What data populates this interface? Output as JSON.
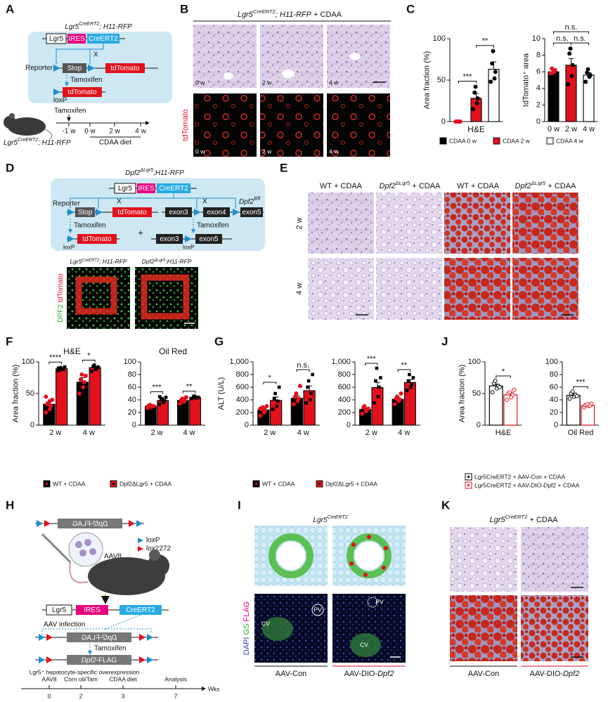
{
  "panel_labels": [
    "A",
    "B",
    "C",
    "D",
    "E",
    "F",
    "G",
    "H",
    "I",
    "J",
    "K"
  ],
  "A": {
    "title": [
      {
        "t": "Lgr5"
      },
      {
        "sup": "CreERT2"
      },
      {
        "t": "; H11-RFP"
      }
    ],
    "construct": [
      "Lgr5",
      "IRES",
      "CreERT2"
    ],
    "x_mark": "X",
    "reporter": "Reporter",
    "stop": "Stop",
    "tdtomato": "tdTomato",
    "tamoxifen": "Tamoxifen",
    "loxp": "loxP",
    "timeline": {
      "tamoxifen": "Tamoxifen",
      "ticks": [
        "-1 w",
        "0 w",
        "2 w",
        "4 w"
      ],
      "diet": "CDAA diet"
    },
    "mouse": [
      {
        "t": "Lgr5"
      },
      {
        "sup": "CreERT2"
      },
      {
        "t": "; H11-RFP"
      }
    ]
  },
  "B": {
    "title": [
      {
        "t": "Lgr5"
      },
      {
        "sup": "CreERT2"
      },
      {
        "t": "; H11-RFP"
      },
      {
        "n": " + CDAA"
      }
    ],
    "ylabel": "tdTomato",
    "times": [
      "0 w",
      "2 w",
      "4 w"
    ]
  },
  "C": {
    "legend": [
      "CDAA 0 w",
      "CDAA 2 w",
      "CDAA 4 w"
    ]
  },
  "D": {
    "title": [
      {
        "t": "Dpf2"
      },
      {
        "sup": "ΔLgr5"
      },
      {
        "t": ";H11-RFP"
      }
    ],
    "construct": [
      "Lgr5",
      "IRES",
      "CreERT2"
    ],
    "reporter": "Reporter",
    "x_mark": "X",
    "floxed": [
      {
        "t": "Dpf2"
      },
      {
        "sup": "fl/fl"
      }
    ],
    "stop": "Stop",
    "tdtomato": "tdTomato",
    "exons": [
      "exon3",
      "exon4",
      "exon5"
    ],
    "tamoxifen": "Tamoxifen",
    "plus": "+",
    "loxp": "loxP",
    "images": [
      [
        {
          "t": "Lgr5"
        },
        {
          "sup": "CreERT2"
        },
        {
          "t": "; H11-RFP"
        }
      ],
      [
        {
          "t": "Dpf2"
        },
        {
          "sup": "ΔLgr5"
        },
        {
          "t": ";H11-RFP"
        }
      ]
    ],
    "ylabel": [
      "DPF2",
      "tdTomato"
    ]
  },
  "E": {
    "columns": [
      "WT + CDAA",
      [
        {
          "i": "Dpf2"
        },
        {
          "sup": "ΔLgr5"
        },
        {
          "n": " + CDAA"
        }
      ],
      "WT + CDAA",
      [
        {
          "i": "Dpf2"
        },
        {
          "sup": "ΔLgr5"
        },
        {
          "n": " + CDAA"
        }
      ]
    ],
    "rows": [
      "2 w",
      "4 w"
    ]
  },
  "H": {
    "mirrored": [
      {
        "i": "Dpf2"
      },
      {
        "n": "-FLAG"
      }
    ],
    "virus": "AAV8",
    "loxp": "loxP",
    "lox2272": "lox2272",
    "construct": [
      "Lgr5",
      "IRES",
      "CreERT2"
    ],
    "infection": "AAV infection",
    "tamoxifen": "Tamoxifen",
    "product": [
      {
        "i": "Dpf2"
      },
      {
        "n": "-FLAG"
      }
    ],
    "caption": "Lgr5⁺ hepatocyte-specific overexpression",
    "timeline": {
      "events": [
        "AAV8",
        "Corn oil/Tam",
        "CDAA diet",
        "Analysis"
      ],
      "weeks": [
        "0",
        "2",
        "3",
        "7"
      ],
      "unit": "Wks"
    }
  },
  "I": {
    "title": [
      {
        "t": "Lgr5"
      },
      {
        "sup": "CreERT2"
      }
    ],
    "ylabel": [
      "DAPI",
      "GS",
      "FLAG"
    ],
    "pv": "PV",
    "cv": "CV",
    "captions": [
      [
        {
          "n": "AAV-Con"
        }
      ],
      [
        {
          "n": "AAV-DIO-"
        },
        {
          "i": "Dpf2"
        }
      ]
    ]
  },
  "K": {
    "title": [
      {
        "t": "Lgr5"
      },
      {
        "sup": "CreERT2"
      },
      {
        "n": " + CDAA"
      }
    ],
    "captions": [
      [
        {
          "n": "AAV-Con"
        }
      ],
      [
        {
          "n": "AAV-DIO-"
        },
        {
          "i": "Dpf2"
        }
      ]
    ]
  },
  "chart_data": [
    {
      "type": "bar",
      "xlabel": "H&E",
      "ylabel": "Area fraction (%)",
      "categories": [
        null,
        null,
        null
      ],
      "values": [
        0,
        28,
        63
      ],
      "errors": [
        0,
        6,
        9
      ],
      "colors": [
        "#000000",
        "#e3111b",
        "#ffffff"
      ],
      "point_colors": [
        "#e3111b",
        "#000000",
        "#000000"
      ],
      "points": [
        [
          0,
          0,
          0,
          0,
          0
        ],
        [
          15,
          22,
          28,
          35,
          42
        ],
        [
          48,
          52,
          60,
          70,
          85
        ]
      ],
      "ylim": [
        0,
        100
      ],
      "yticks": [
        0,
        50,
        100
      ],
      "annotations": [
        "***",
        "**"
      ]
    },
    {
      "type": "bar",
      "ylabel": "tdTomato⁺ area",
      "categories": [
        "0 w",
        "2 w",
        "4 w"
      ],
      "values": [
        6.0,
        6.8,
        5.6
      ],
      "errors": [
        0.3,
        0.8,
        0.3
      ],
      "colors": [
        "#000000",
        "#e3111b",
        "#ffffff"
      ],
      "point_colors": [
        "#e3111b",
        "#000000",
        "#000000"
      ],
      "points": [
        [
          5.8,
          6.0,
          6.2,
          6.4,
          5.9
        ],
        [
          4.5,
          5.5,
          6.8,
          8.2,
          8.8
        ],
        [
          4.8,
          5.4,
          5.6,
          5.9,
          6.3
        ]
      ],
      "ylim": [
        0,
        10
      ],
      "yticks": [
        0,
        2,
        4,
        6,
        8,
        10
      ],
      "annotations": [
        "n.s.",
        "n.s.",
        "n.s."
      ]
    },
    {
      "type": "bar",
      "title": "H&E",
      "ylabel": "Area fraction (%)",
      "categories": [
        "2 w",
        "4 w"
      ],
      "series": [
        {
          "name": "WT + CDAA",
          "color": "#000000",
          "point_color": "#e3111b",
          "values": [
            33,
            68
          ],
          "errors": [
            4,
            7
          ],
          "points": [
            [
              20,
              25,
              30,
              33,
              35,
              40,
              45,
              38
            ],
            [
              50,
              60,
              68,
              72,
              80,
              78
            ]
          ]
        },
        {
          "name": "Dpf2ΔLgr5 + CDAA",
          "color": "#e3111b",
          "point_color": "#000000",
          "marker": "square",
          "values": [
            89,
            91
          ],
          "errors": [
            1,
            2
          ],
          "points": [
            [
              86,
              88,
              89,
              90,
              91,
              92,
              90
            ],
            [
              85,
              88,
              90,
              93,
              95,
              92
            ]
          ]
        }
      ],
      "ylim": [
        0,
        100
      ],
      "yticks": [
        0,
        50,
        100
      ],
      "annotations": [
        "****",
        "*"
      ]
    },
    {
      "type": "bar",
      "title": "Oil Red",
      "categories": [
        "2 w",
        "4 w"
      ],
      "series": [
        {
          "name": "WT + CDAA",
          "color": "#000000",
          "point_color": "#e3111b",
          "values": [
            30,
            39
          ],
          "errors": [
            1,
            2
          ],
          "points": [
            [
              27,
              29,
              30,
              31,
              32,
              30,
              29
            ],
            [
              34,
              37,
              39,
              40,
              42,
              44
            ]
          ]
        },
        {
          "name": "Dpf2ΔLgr5 + CDAA",
          "color": "#e3111b",
          "point_color": "#000000",
          "marker": "square",
          "values": [
            39,
            44
          ],
          "errors": [
            2,
            1
          ],
          "points": [
            [
              33,
              36,
              38,
              40,
              42,
              44,
              45
            ],
            [
              42,
              43,
              44,
              45,
              46,
              44
            ]
          ]
        }
      ],
      "ylim": [
        0,
        100
      ],
      "yticks": [
        0,
        20,
        40,
        60,
        80,
        100
      ],
      "annotations": [
        "***",
        "**"
      ]
    },
    {
      "type": "bar",
      "ylabel": "ALT (U/L)",
      "categories": [
        "2 w",
        "4 w"
      ],
      "series": [
        {
          "name": "WT + CDAA",
          "color": "#000000",
          "point_color": "#e3111b",
          "values": [
            240,
            425
          ],
          "errors": [
            25,
            40
          ],
          "points": [
            [
              150,
              200,
              230,
              250,
              280,
              300,
              260
            ],
            [
              330,
              380,
              420,
              450,
              500,
              620
            ]
          ]
        },
        {
          "name": "Dpf2ΔLgr5 + CDAA",
          "color": "#e3111b",
          "point_color": "#000000",
          "marker": "square",
          "values": [
            390,
            545
          ],
          "errors": [
            55,
            75
          ],
          "points": [
            [
              250,
              300,
              380,
              420,
              500,
              600
            ],
            [
              350,
              400,
              500,
              600,
              700,
              800
            ]
          ]
        }
      ],
      "ylim": [
        0,
        1000
      ],
      "yticks": [
        0,
        200,
        400,
        600,
        800,
        {
          "value": 1000,
          "label": "1,000"
        }
      ],
      "annotations": [
        "*",
        "n.s."
      ]
    },
    {
      "type": "bar",
      "categories": [
        "2 w",
        "4 w"
      ],
      "series": [
        {
          "name": "WT + CDAA",
          "color": "#000000",
          "point_color": "#e3111b",
          "values": [
            250,
            410
          ],
          "errors": [
            25,
            25
          ],
          "points": [
            [
              180,
              220,
              250,
              280,
              300,
              260
            ],
            [
              330,
              380,
              400,
              420,
              450,
              500
            ]
          ]
        },
        {
          "name": "Dpf2ΔLgr5 + CDAA",
          "color": "#e3111b",
          "point_color": "#000000",
          "marker": "square",
          "values": [
            595,
            675
          ],
          "errors": [
            80,
            45
          ],
          "points": [
            [
              350,
              450,
              600,
              700,
              900,
              750
            ],
            [
              550,
              600,
              650,
              700,
              800,
              750
            ]
          ]
        }
      ],
      "ylim": [
        0,
        1000
      ],
      "yticks": [
        0,
        200,
        400,
        600,
        800,
        {
          "value": 1000,
          "label": "1,000"
        }
      ],
      "annotations": [
        "***",
        "**"
      ]
    },
    {
      "type": "bar",
      "ylabel": "Area fraction (%)",
      "categories": [
        "H&E"
      ],
      "series": [
        {
          "name": "Lgr5CreERT2 + AAV-Con + CDAA",
          "color": "#000000",
          "fill": "#ffffff",
          "point_color": "#000000",
          "marker": "open",
          "values": [
            62
          ],
          "errors": [
            3
          ],
          "points": [
            [
              52,
              58,
              62,
              66,
              70,
              60
            ]
          ]
        },
        {
          "name": "Lgr5CreERT2 + AAV-DIO-Dpf2 + CDAA",
          "color": "#e3111b",
          "fill": "#ffffff",
          "point_color": "#e3111b",
          "marker": "open",
          "values": [
            48
          ],
          "errors": [
            3
          ],
          "points": [
            [
              40,
              44,
              48,
              50,
              52,
              56
            ]
          ]
        }
      ],
      "ylim": [
        0,
        100
      ],
      "yticks": [
        0,
        50,
        100
      ],
      "annotations": [
        "*"
      ]
    },
    {
      "type": "bar",
      "categories": [
        "Oil Red"
      ],
      "series": [
        {
          "name": "Lgr5CreERT2 + AAV-Con + CDAA",
          "color": "#000000",
          "fill": "#ffffff",
          "point_color": "#000000",
          "marker": "open",
          "values": [
            47
          ],
          "errors": [
            2
          ],
          "points": [
            [
              42,
              45,
              48,
              50,
              53,
              46
            ]
          ]
        },
        {
          "name": "Lgr5CreERT2 + AAV-DIO-Dpf2 + CDAA",
          "color": "#e3111b",
          "fill": "#ffffff",
          "point_color": "#e3111b",
          "marker": "open",
          "values": [
            31
          ],
          "errors": [
            1
          ],
          "points": [
            [
              28,
              30,
              31,
              32,
              33,
              34
            ]
          ]
        }
      ],
      "ylim": [
        0,
        100
      ],
      "yticks": [
        0,
        20,
        40,
        60,
        80,
        100
      ],
      "annotations": [
        "***"
      ]
    }
  ]
}
